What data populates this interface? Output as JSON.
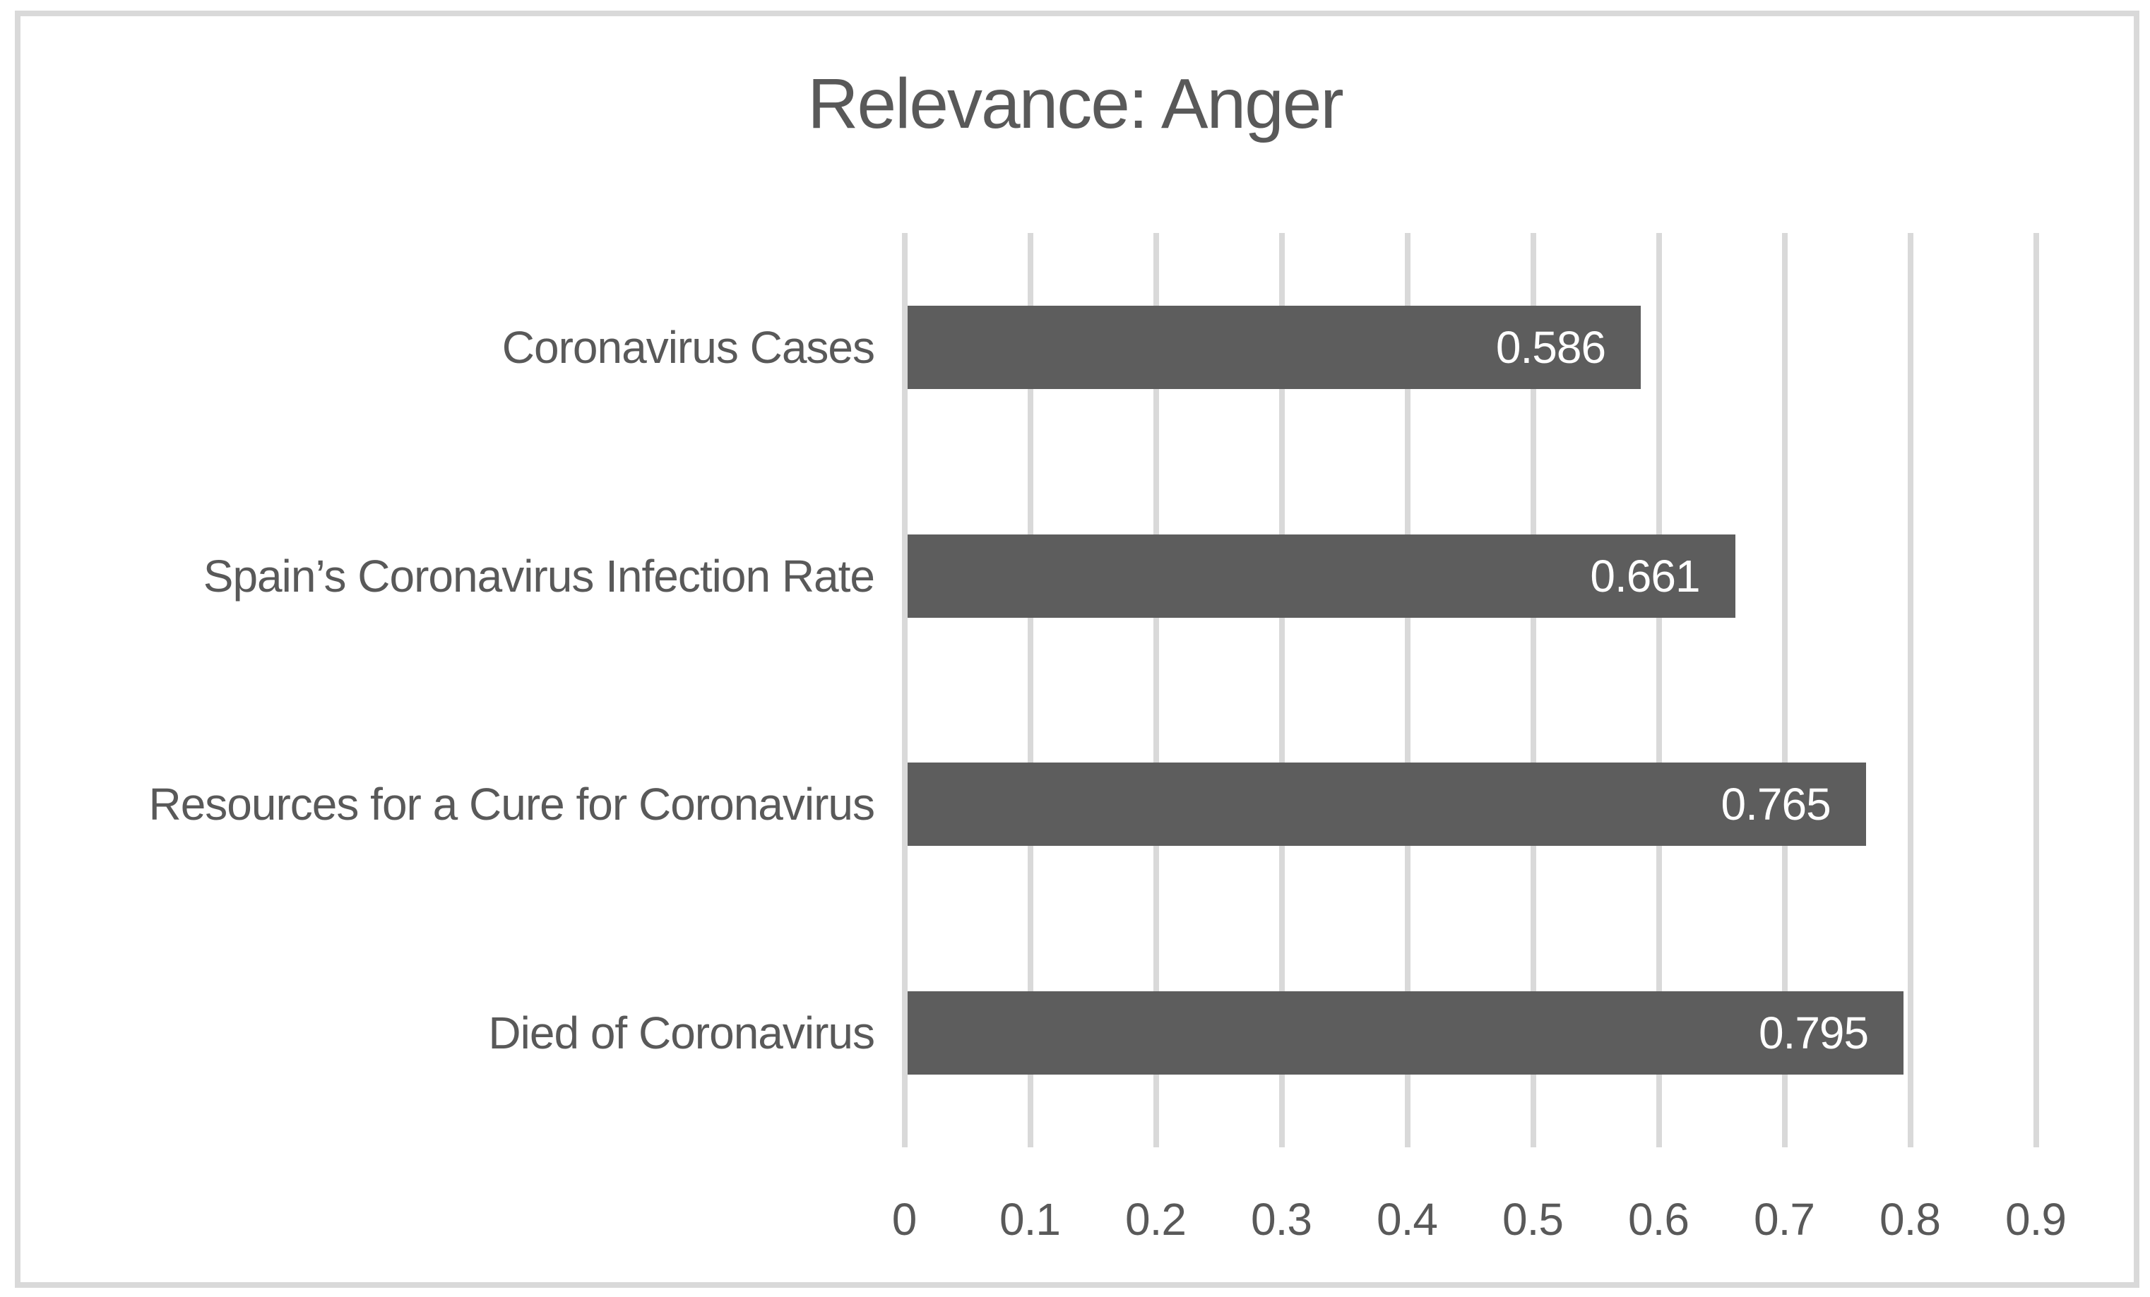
{
  "title": "Relevance: Anger",
  "chart_data": {
    "type": "bar",
    "orientation": "horizontal",
    "title": "Relevance: Anger",
    "categories": [
      "Coronavirus Cases",
      "Spain’s Coronavirus Infection Rate",
      "Resources for a Cure for Coronavirus",
      "Died of Coronavirus"
    ],
    "values": [
      0.586,
      0.661,
      0.765,
      0.795
    ],
    "value_labels": [
      "0.586",
      "0.661",
      "0.765",
      "0.795"
    ],
    "xlabel": "",
    "ylabel": "",
    "xlim": [
      0,
      0.9
    ],
    "xticks": [
      0,
      0.1,
      0.2,
      0.3,
      0.4,
      0.5,
      0.6,
      0.7,
      0.8,
      0.9
    ],
    "xtick_labels": [
      "0",
      "0.1",
      "0.2",
      "0.3",
      "0.4",
      "0.5",
      "0.6",
      "0.7",
      "0.8",
      "0.9"
    ],
    "grid": "vertical-gridlines-on",
    "legend": "none",
    "colors": {
      "bar": "#5d5d5d",
      "value_label": "#ffffff",
      "gridline": "#d9d9d9",
      "frame_border": "#d9d9d9",
      "text": "#595959",
      "background": "#ffffff"
    }
  }
}
